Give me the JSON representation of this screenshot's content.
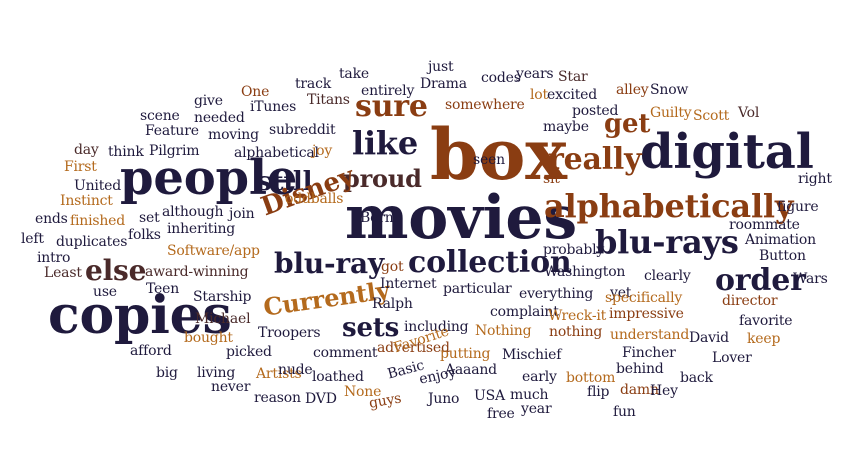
{
  "words": [
    {
      "text": "box",
      "color": "#8a3d12"
    },
    {
      "text": "movies",
      "color": "#1f1a3d"
    },
    {
      "text": "people",
      "color": "#1f1a3d"
    },
    {
      "text": "digital",
      "color": "#1f1a3d"
    },
    {
      "text": "copies",
      "color": "#1f1a3d"
    },
    {
      "text": "alphabetically",
      "color": "#8a3d12"
    },
    {
      "text": "blu-rays",
      "color": "#1f1a3d"
    },
    {
      "text": "collection",
      "color": "#1f1a3d"
    },
    {
      "text": "blu-ray",
      "color": "#1f1a3d"
    },
    {
      "text": "Currently",
      "color": "#b46a1d"
    },
    {
      "text": "really",
      "color": "#8a3d12"
    },
    {
      "text": "like",
      "color": "#1f1a3d"
    },
    {
      "text": "still",
      "color": "#1f1a3d"
    },
    {
      "text": "proud",
      "color": "#4a2a2a"
    },
    {
      "text": "sure",
      "color": "#8a3d12"
    },
    {
      "text": "order",
      "color": "#1f1a3d"
    },
    {
      "text": "else",
      "color": "#4a2a2a"
    },
    {
      "text": "Disney",
      "color": "#8a3d12"
    },
    {
      "text": "sets",
      "color": "#1f1a3d"
    },
    {
      "text": "get",
      "color": "#8a3d12"
    },
    {
      "text": "One",
      "color": "#8a3d12"
    },
    {
      "text": "track",
      "color": "#1f1a3d"
    },
    {
      "text": "take",
      "color": "#1f1a3d"
    },
    {
      "text": "just",
      "color": "#1f1a3d"
    },
    {
      "text": "Star",
      "color": "#4a2a2a"
    },
    {
      "text": "codes",
      "color": "#1f1a3d"
    },
    {
      "text": "years",
      "color": "#1f1a3d"
    },
    {
      "text": "give",
      "color": "#1f1a3d"
    },
    {
      "text": "entirely",
      "color": "#1f1a3d"
    },
    {
      "text": "Drama",
      "color": "#1f1a3d"
    },
    {
      "text": "alley",
      "color": "#8a3d12"
    },
    {
      "text": "Snow",
      "color": "#1f1a3d"
    },
    {
      "text": "iTunes",
      "color": "#1f1a3d"
    },
    {
      "text": "Titans",
      "color": "#4a2a2a"
    },
    {
      "text": "lot",
      "color": "#b46a1d"
    },
    {
      "text": "excited",
      "color": "#1f1a3d"
    },
    {
      "text": "scene",
      "color": "#1f1a3d"
    },
    {
      "text": "needed",
      "color": "#1f1a3d"
    },
    {
      "text": "somewhere",
      "color": "#8a3d12"
    },
    {
      "text": "posted",
      "color": "#1f1a3d"
    },
    {
      "text": "Guilty",
      "color": "#b46a1d"
    },
    {
      "text": "Scott",
      "color": "#b46a1d"
    },
    {
      "text": "Vol",
      "color": "#4a2a2a"
    },
    {
      "text": "Feature",
      "color": "#1f1a3d"
    },
    {
      "text": "moving",
      "color": "#1f1a3d"
    },
    {
      "text": "subreddit",
      "color": "#1f1a3d"
    },
    {
      "text": "maybe",
      "color": "#1f1a3d"
    },
    {
      "text": "day",
      "color": "#4a2a2a"
    },
    {
      "text": "think",
      "color": "#1f1a3d"
    },
    {
      "text": "Pilgrim",
      "color": "#1f1a3d"
    },
    {
      "text": "alphabetical",
      "color": "#1f1a3d"
    },
    {
      "text": "First",
      "color": "#b46a1d"
    },
    {
      "text": "United",
      "color": "#1f1a3d"
    },
    {
      "text": "joy",
      "color": "#b46a1d"
    },
    {
      "text": "seen",
      "color": "#1f1a3d"
    },
    {
      "text": "sit",
      "color": "#8a3d12"
    },
    {
      "text": "right",
      "color": "#1f1a3d"
    },
    {
      "text": "Instinct",
      "color": "#b46a1d"
    },
    {
      "text": "oddballs",
      "color": "#b46a1d"
    },
    {
      "text": "Born",
      "color": "#1f1a3d"
    },
    {
      "text": "ends",
      "color": "#1f1a3d"
    },
    {
      "text": "finished",
      "color": "#b46a1d"
    },
    {
      "text": "set",
      "color": "#1f1a3d"
    },
    {
      "text": "although",
      "color": "#1f1a3d"
    },
    {
      "text": "join",
      "color": "#1f1a3d"
    },
    {
      "text": "figure",
      "color": "#1f1a3d"
    },
    {
      "text": "left",
      "color": "#1f1a3d"
    },
    {
      "text": "duplicates",
      "color": "#1f1a3d"
    },
    {
      "text": "folks",
      "color": "#1f1a3d"
    },
    {
      "text": "inheriting",
      "color": "#1f1a3d"
    },
    {
      "text": "probably",
      "color": "#1f1a3d"
    },
    {
      "text": "roommate",
      "color": "#1f1a3d"
    },
    {
      "text": "intro",
      "color": "#1f1a3d"
    },
    {
      "text": "Software/app",
      "color": "#b46a1d"
    },
    {
      "text": "Animation",
      "color": "#1f1a3d"
    },
    {
      "text": "Least",
      "color": "#4a2a2a"
    },
    {
      "text": "award-winning",
      "color": "#4a2a2a"
    },
    {
      "text": "got",
      "color": "#8a3d12"
    },
    {
      "text": "Washington",
      "color": "#1f1a3d"
    },
    {
      "text": "clearly",
      "color": "#1f1a3d"
    },
    {
      "text": "Button",
      "color": "#1f1a3d"
    },
    {
      "text": "use",
      "color": "#1f1a3d"
    },
    {
      "text": "Teen",
      "color": "#1f1a3d"
    },
    {
      "text": "Internet",
      "color": "#1f1a3d"
    },
    {
      "text": "particular",
      "color": "#1f1a3d"
    },
    {
      "text": "everything",
      "color": "#1f1a3d"
    },
    {
      "text": "yet",
      "color": "#1f1a3d"
    },
    {
      "text": "Wars",
      "color": "#1f1a3d"
    },
    {
      "text": "Starship",
      "color": "#1f1a3d"
    },
    {
      "text": "Ralph",
      "color": "#1f1a3d"
    },
    {
      "text": "specifically",
      "color": "#b46a1d"
    },
    {
      "text": "director",
      "color": "#8a3d12"
    },
    {
      "text": "complaint",
      "color": "#1f1a3d"
    },
    {
      "text": "Michael",
      "color": "#4a2a2a"
    },
    {
      "text": "Wreck-it",
      "color": "#b46a1d"
    },
    {
      "text": "impressive",
      "color": "#8a3d12"
    },
    {
      "text": "Troopers",
      "color": "#1f1a3d"
    },
    {
      "text": "including",
      "color": "#1f1a3d"
    },
    {
      "text": "nothing",
      "color": "#8a3d12"
    },
    {
      "text": "understand",
      "color": "#b46a1d"
    },
    {
      "text": "David",
      "color": "#1f1a3d"
    },
    {
      "text": "favorite",
      "color": "#1f1a3d"
    },
    {
      "text": "Nothing",
      "color": "#b46a1d"
    },
    {
      "text": "keep",
      "color": "#b46a1d"
    },
    {
      "text": "bought",
      "color": "#b46a1d"
    },
    {
      "text": "advertised",
      "color": "#8a3d12"
    },
    {
      "text": "afford",
      "color": "#1f1a3d"
    },
    {
      "text": "picked",
      "color": "#1f1a3d"
    },
    {
      "text": "comment",
      "color": "#1f1a3d"
    },
    {
      "text": "Favorite",
      "color": "#b46a1d"
    },
    {
      "text": "putting",
      "color": "#b46a1d"
    },
    {
      "text": "Mischief",
      "color": "#1f1a3d"
    },
    {
      "text": "Fincher",
      "color": "#1f1a3d"
    },
    {
      "text": "Lover",
      "color": "#1f1a3d"
    },
    {
      "text": "big",
      "color": "#1f1a3d"
    },
    {
      "text": "living",
      "color": "#1f1a3d"
    },
    {
      "text": "Artists",
      "color": "#b46a1d"
    },
    {
      "text": "Basic",
      "color": "#1f1a3d"
    },
    {
      "text": "Aaaand",
      "color": "#1f1a3d"
    },
    {
      "text": "early",
      "color": "#1f1a3d"
    },
    {
      "text": "bottom",
      "color": "#b46a1d"
    },
    {
      "text": "behind",
      "color": "#1f1a3d"
    },
    {
      "text": "back",
      "color": "#1f1a3d"
    },
    {
      "text": "never",
      "color": "#1f1a3d"
    },
    {
      "text": "nude",
      "color": "#1f1a3d"
    },
    {
      "text": "loathed",
      "color": "#1f1a3d"
    },
    {
      "text": "enjoy",
      "color": "#1f1a3d"
    },
    {
      "text": "much",
      "color": "#1f1a3d"
    },
    {
      "text": "flip",
      "color": "#1f1a3d"
    },
    {
      "text": "damn",
      "color": "#8a3d12"
    },
    {
      "text": "Hey",
      "color": "#1f1a3d"
    },
    {
      "text": "reason",
      "color": "#1f1a3d"
    },
    {
      "text": "DVD",
      "color": "#1f1a3d"
    },
    {
      "text": "None",
      "color": "#b46a1d"
    },
    {
      "text": "guys",
      "color": "#8a3d12"
    },
    {
      "text": "Juno",
      "color": "#1f1a3d"
    },
    {
      "text": "USA",
      "color": "#1f1a3d"
    },
    {
      "text": "year",
      "color": "#1f1a3d"
    },
    {
      "text": "fun",
      "color": "#1f1a3d"
    },
    {
      "text": "free",
      "color": "#1f1a3d"
    }
  ]
}
